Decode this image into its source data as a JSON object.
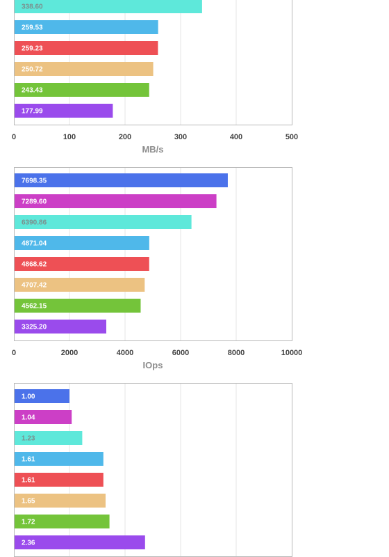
{
  "chart_data": [
    {
      "type": "bar",
      "orientation": "horizontal",
      "values": [
        338.6,
        259.53,
        259.23,
        250.72,
        243.43,
        177.99
      ],
      "data_labels": [
        "338.60",
        "259.53",
        "259.23",
        "250.72",
        "243.43",
        "177.99"
      ],
      "colors": [
        "#5ee8da",
        "#4fb8ea",
        "#ee5055",
        "#ecc282",
        "#74c43a",
        "#9a4bec"
      ],
      "xlim": [
        0,
        500
      ],
      "xticks": [
        "0",
        "100",
        "200",
        "300",
        "400",
        "500"
      ],
      "xlabel": "MB/s",
      "grid": true
    },
    {
      "type": "bar",
      "orientation": "horizontal",
      "values": [
        7698.35,
        7289.6,
        6390.86,
        4871.04,
        4868.62,
        4707.42,
        4562.15,
        3325.2
      ],
      "data_labels": [
        "7698.35",
        "7289.60",
        "6390.86",
        "4871.04",
        "4868.62",
        "4707.42",
        "4562.15",
        "3325.20"
      ],
      "colors": [
        "#4b72ea",
        "#cc3fc6",
        "#5ee8da",
        "#4fb8ea",
        "#ee5055",
        "#ecc282",
        "#74c43a",
        "#9a4bec"
      ],
      "xlim": [
        0,
        10000
      ],
      "xticks": [
        "0",
        "2000",
        "4000",
        "6000",
        "8000",
        "10000"
      ],
      "xlabel": "IOps",
      "grid": true
    },
    {
      "type": "bar",
      "orientation": "horizontal",
      "values": [
        1.0,
        1.04,
        1.23,
        1.61,
        1.61,
        1.65,
        1.72,
        2.36
      ],
      "data_labels": [
        "1.00",
        "1.04",
        "1.23",
        "1.61",
        "1.61",
        "1.65",
        "1.72",
        "2.36"
      ],
      "colors": [
        "#4b72ea",
        "#cc3fc6",
        "#5ee8da",
        "#4fb8ea",
        "#ee5055",
        "#ecc282",
        "#74c43a",
        "#9a4bec"
      ],
      "xlim": [
        0,
        5
      ],
      "xticks": [],
      "xlabel": "",
      "grid": true
    }
  ]
}
